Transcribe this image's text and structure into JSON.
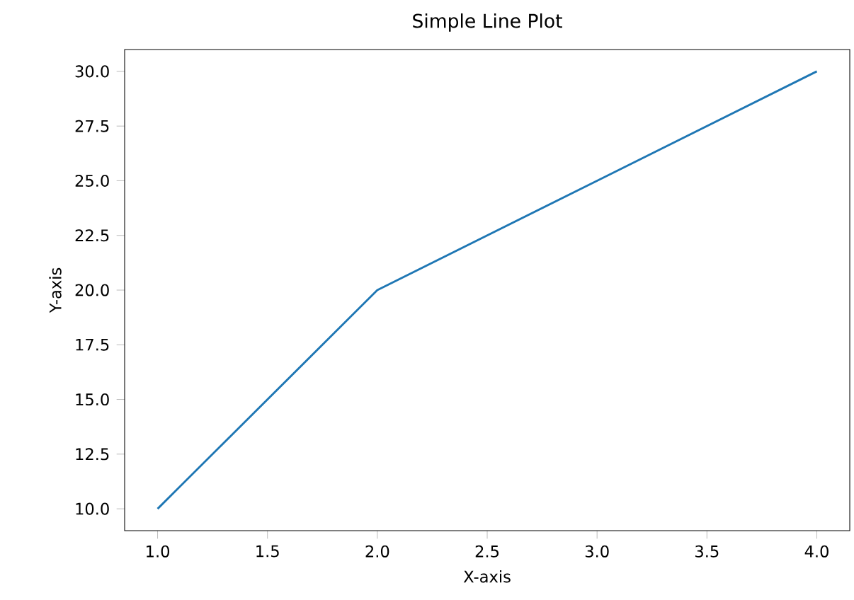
{
  "chart_data": {
    "type": "line",
    "title": "Simple Line Plot",
    "xlabel": "X-axis",
    "ylabel": "Y-axis",
    "x": [
      1,
      2,
      3,
      4
    ],
    "series": [
      {
        "color": "#1f77b4",
        "values": [
          10,
          20,
          25,
          30
        ]
      }
    ],
    "xlim": [
      0.85,
      4.15
    ],
    "ylim": [
      9.0,
      31.0
    ],
    "xticks": [
      {
        "value": 1.0,
        "label": "1.0"
      },
      {
        "value": 1.5,
        "label": "1.5"
      },
      {
        "value": 2.0,
        "label": "2.0"
      },
      {
        "value": 2.5,
        "label": "2.5"
      },
      {
        "value": 3.0,
        "label": "3.0"
      },
      {
        "value": 3.5,
        "label": "3.5"
      },
      {
        "value": 4.0,
        "label": "4.0"
      }
    ],
    "yticks": [
      {
        "value": 10.0,
        "label": "10.0"
      },
      {
        "value": 12.5,
        "label": "12.5"
      },
      {
        "value": 15.0,
        "label": "15.0"
      },
      {
        "value": 17.5,
        "label": "17.5"
      },
      {
        "value": 20.0,
        "label": "20.0"
      },
      {
        "value": 22.5,
        "label": "22.5"
      },
      {
        "value": 25.0,
        "label": "25.0"
      },
      {
        "value": 27.5,
        "label": "27.5"
      },
      {
        "value": 30.0,
        "label": "30.0"
      }
    ],
    "grid": false
  }
}
